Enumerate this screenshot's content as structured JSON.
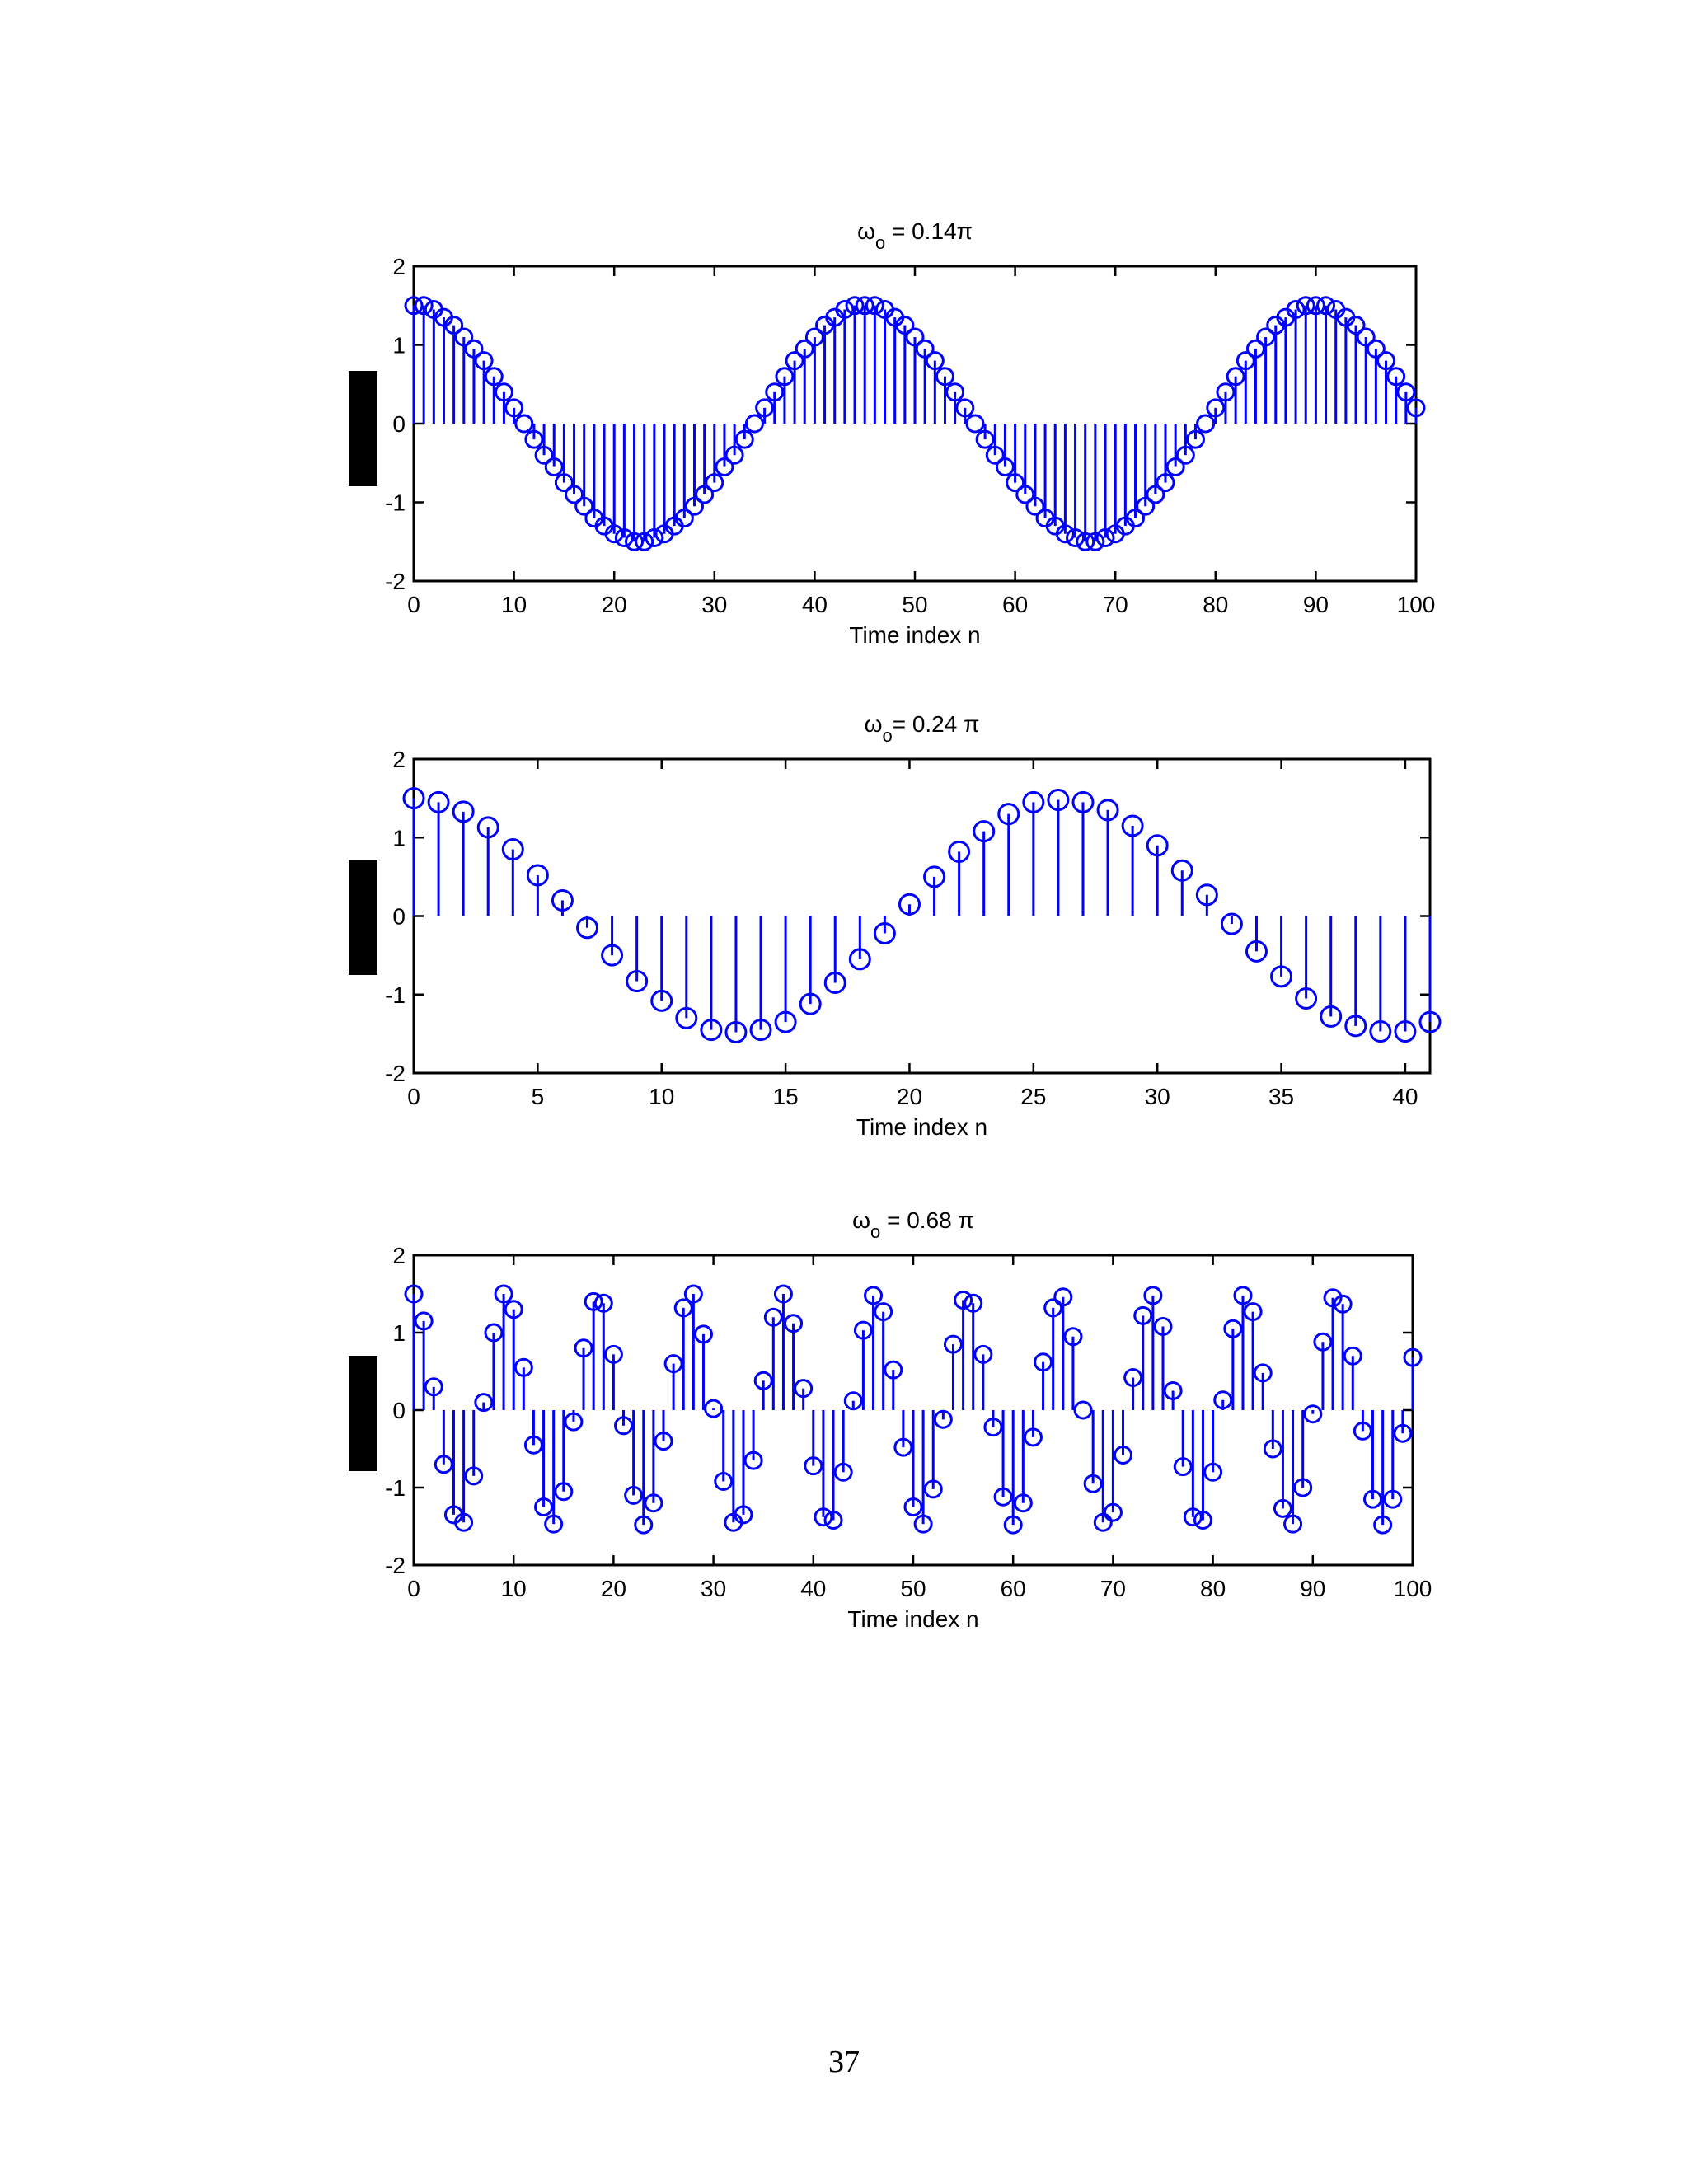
{
  "page": {
    "page_number": "37"
  },
  "chart_data": [
    {
      "type": "stem",
      "title": "ωo = 0.14π",
      "title_main": "ω",
      "title_sub": "o",
      "title_rest": " = 0.14π",
      "xlabel": "Time index n",
      "ylabel": "",
      "xlim": [
        0,
        100
      ],
      "ylim": [
        -2,
        2
      ],
      "xticks": [
        "0",
        "10",
        "20",
        "30",
        "40",
        "50",
        "60",
        "70",
        "80",
        "90",
        "100"
      ],
      "yticks": [
        "2",
        "1",
        "0",
        "-1",
        "-2"
      ],
      "x": [
        0,
        1,
        2,
        3,
        4,
        5,
        6,
        7,
        8,
        9,
        10,
        11,
        12,
        13,
        14,
        15,
        16,
        17,
        18,
        19,
        20,
        21,
        22,
        23,
        24,
        25,
        26,
        27,
        28,
        29,
        30,
        31,
        32,
        33,
        34,
        35,
        36,
        37,
        38,
        39,
        40,
        41,
        42,
        43,
        44,
        45,
        46,
        47,
        48,
        49,
        50,
        51,
        52,
        53,
        54,
        55,
        56,
        57,
        58,
        59,
        60,
        61,
        62,
        63,
        64,
        65,
        66,
        67,
        68,
        69,
        70,
        71,
        72,
        73,
        74,
        75,
        76,
        77,
        78,
        79,
        80,
        81,
        82,
        83,
        84,
        85,
        86,
        87,
        88,
        89,
        90,
        91,
        92,
        93,
        94,
        95,
        96,
        97,
        98,
        99,
        100
      ],
      "y": [
        1.5,
        1.5,
        1.45,
        1.35,
        1.25,
        1.1,
        0.95,
        0.8,
        0.6,
        0.4,
        0.2,
        0.0,
        -0.2,
        -0.4,
        -0.55,
        -0.75,
        -0.9,
        -1.05,
        -1.2,
        -1.3,
        -1.4,
        -1.45,
        -1.5,
        -1.5,
        -1.45,
        -1.4,
        -1.3,
        -1.2,
        -1.05,
        -0.9,
        -0.75,
        -0.55,
        -0.4,
        -0.2,
        0.0,
        0.2,
        0.4,
        0.6,
        0.8,
        0.95,
        1.1,
        1.25,
        1.35,
        1.45,
        1.5,
        1.5,
        1.5,
        1.45,
        1.35,
        1.25,
        1.1,
        0.95,
        0.8,
        0.6,
        0.4,
        0.2,
        0.0,
        -0.2,
        -0.4,
        -0.55,
        -0.75,
        -0.9,
        -1.05,
        -1.2,
        -1.3,
        -1.4,
        -1.45,
        -1.5,
        -1.5,
        -1.45,
        -1.4,
        -1.3,
        -1.2,
        -1.05,
        -0.9,
        -0.75,
        -0.55,
        -0.4,
        -0.2,
        0.0,
        0.2,
        0.4,
        0.6,
        0.8,
        0.95,
        1.1,
        1.25,
        1.35,
        1.45,
        1.5,
        1.5,
        1.5,
        1.45,
        1.35,
        1.25,
        1.1,
        0.95,
        0.8,
        0.6,
        0.4,
        0.2
      ],
      "grid": false,
      "color": "#0000ff"
    },
    {
      "type": "stem",
      "title": "ωo = 0.24π",
      "title_main": "ω",
      "title_sub": "o",
      "title_rest": "= 0.24 π",
      "xlabel": "Time index n",
      "ylabel": "",
      "xlim": [
        0,
        41
      ],
      "ylim": [
        -2,
        2
      ],
      "xticks": [
        "0",
        "5",
        "10",
        "15",
        "20",
        "25",
        "30",
        "35",
        "40"
      ],
      "xtick_values": [
        0,
        5,
        10,
        15,
        20,
        25,
        30,
        35,
        40
      ],
      "yticks": [
        "2",
        "1",
        "0",
        "-1",
        "-2"
      ],
      "x": [
        0,
        1,
        2,
        3,
        4,
        5,
        6,
        7,
        8,
        9,
        10,
        11,
        12,
        13,
        14,
        15,
        16,
        17,
        18,
        19,
        20,
        21,
        22,
        23,
        24,
        25,
        26,
        27,
        28,
        29,
        30,
        31,
        32,
        33,
        34,
        35,
        36,
        37,
        38,
        39,
        40,
        41
      ],
      "y": [
        1.5,
        1.45,
        1.33,
        1.13,
        0.85,
        0.52,
        0.2,
        -0.15,
        -0.5,
        -0.83,
        -1.08,
        -1.3,
        -1.45,
        -1.48,
        -1.45,
        -1.35,
        -1.12,
        -0.85,
        -0.55,
        -0.22,
        0.15,
        0.5,
        0.82,
        1.08,
        1.3,
        1.45,
        1.48,
        1.45,
        1.35,
        1.15,
        0.9,
        0.58,
        0.27,
        -0.1,
        -0.45,
        -0.77,
        -1.05,
        -1.28,
        -1.4,
        -1.47,
        -1.47,
        -1.35
      ],
      "grid": false,
      "color": "#0000ff"
    },
    {
      "type": "stem",
      "title": "ωo = 0.68π",
      "title_main": "ω",
      "title_sub": "o",
      "title_rest": " = 0.68 π",
      "xlabel": "Time index n",
      "ylabel": "",
      "xlim": [
        0,
        100
      ],
      "ylim": [
        -2,
        2
      ],
      "xticks": [
        "0",
        "10",
        "20",
        "30",
        "40",
        "50",
        "60",
        "70",
        "80",
        "90",
        "100"
      ],
      "yticks": [
        "2",
        "1",
        "0",
        "-1",
        "-2"
      ],
      "x": [
        0,
        1,
        2,
        3,
        4,
        5,
        6,
        7,
        8,
        9,
        10,
        11,
        12,
        13,
        14,
        15,
        16,
        17,
        18,
        19,
        20,
        21,
        22,
        23,
        24,
        25,
        26,
        27,
        28,
        29,
        30,
        31,
        32,
        33,
        34,
        35,
        36,
        37,
        38,
        39,
        40,
        41,
        42,
        43,
        44,
        45,
        46,
        47,
        48,
        49,
        50,
        51,
        52,
        53,
        54,
        55,
        56,
        57,
        58,
        59,
        60,
        61,
        62,
        63,
        64,
        65,
        66,
        67,
        68,
        69,
        70,
        71,
        72,
        73,
        74,
        75,
        76,
        77,
        78,
        79,
        80,
        81,
        82,
        83,
        84,
        85,
        86,
        87,
        88,
        89,
        90,
        91,
        92,
        93,
        94,
        95,
        96,
        97,
        98,
        99,
        100
      ],
      "y": [
        1.5,
        1.15,
        0.3,
        -0.7,
        -1.35,
        -1.45,
        -0.85,
        0.1,
        1.0,
        1.5,
        1.3,
        0.55,
        -0.45,
        -1.25,
        -1.47,
        -1.05,
        -0.15,
        0.8,
        1.4,
        1.38,
        0.72,
        -0.2,
        -1.1,
        -1.48,
        -1.2,
        -0.4,
        0.6,
        1.32,
        1.5,
        0.98,
        0.02,
        -0.92,
        -1.45,
        -1.35,
        -0.65,
        0.38,
        1.2,
        1.5,
        1.12,
        0.28,
        -0.72,
        -1.38,
        -1.42,
        -0.8,
        0.12,
        1.03,
        1.48,
        1.27,
        0.52,
        -0.48,
        -1.25,
        -1.47,
        -1.02,
        -0.12,
        0.85,
        1.42,
        1.38,
        0.72,
        -0.22,
        -1.12,
        -1.48,
        -1.2,
        -0.35,
        0.62,
        1.32,
        1.46,
        0.95,
        0.0,
        -0.95,
        -1.45,
        -1.32,
        -0.58,
        0.42,
        1.22,
        1.48,
        1.08,
        0.25,
        -0.73,
        -1.38,
        -1.42,
        -0.8,
        0.13,
        1.05,
        1.48,
        1.27,
        0.48,
        -0.5,
        -1.27,
        -1.47,
        -1.0,
        -0.05,
        0.88,
        1.45,
        1.37,
        0.7,
        -0.27,
        -1.15,
        -1.48,
        -1.15,
        -0.3,
        0.68
      ],
      "grid": false,
      "color": "#0000ff"
    }
  ]
}
